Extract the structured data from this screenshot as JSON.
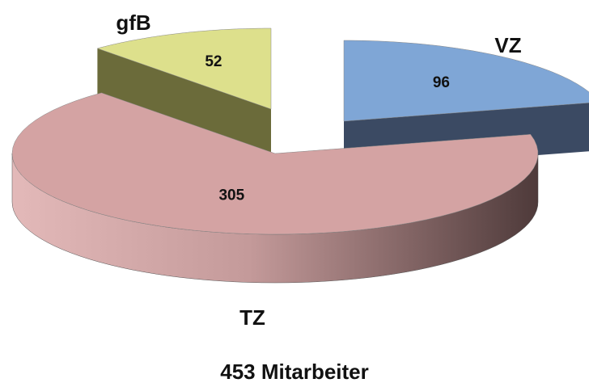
{
  "chart_data": {
    "type": "pie",
    "title": "453 Mitarbeiter",
    "categories": [
      "VZ",
      "TZ",
      "gfB"
    ],
    "values": [
      96,
      305,
      52
    ],
    "colors": [
      "#7fa6d6",
      "#d4a3a3",
      "#dde08c"
    ],
    "side_colors": [
      "#3b4a63",
      "#7a5a5a",
      "#6b6b3a"
    ]
  }
}
